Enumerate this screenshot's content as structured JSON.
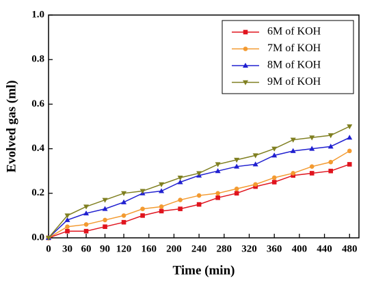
{
  "chart_data": {
    "type": "line",
    "x_label": "Time (min)",
    "y_label": "Evolved gas (ml)",
    "x": [
      0,
      30,
      60,
      90,
      120,
      150,
      180,
      210,
      240,
      270,
      300,
      330,
      360,
      390,
      420,
      450,
      480
    ],
    "series": [
      {
        "name": "6M of KOH",
        "color": "#e0141e",
        "marker": "square",
        "values": [
          0,
          0.03,
          0.03,
          0.05,
          0.07,
          0.1,
          0.12,
          0.13,
          0.15,
          0.18,
          0.2,
          0.23,
          0.25,
          0.28,
          0.29,
          0.3,
          0.33
        ]
      },
      {
        "name": "7M of KOH",
        "color": "#f39a30",
        "marker": "circle",
        "values": [
          0,
          0.05,
          0.06,
          0.08,
          0.1,
          0.13,
          0.14,
          0.17,
          0.19,
          0.2,
          0.22,
          0.24,
          0.27,
          0.29,
          0.32,
          0.34,
          0.39
        ]
      },
      {
        "name": "8M of KOH",
        "color": "#2020d0",
        "marker": "triangle-up",
        "values": [
          0,
          0.08,
          0.11,
          0.13,
          0.16,
          0.2,
          0.21,
          0.25,
          0.28,
          0.3,
          0.32,
          0.33,
          0.37,
          0.39,
          0.4,
          0.41,
          0.45
        ]
      },
      {
        "name": "9M of KOH",
        "color": "#7f7f20",
        "marker": "triangle-down",
        "values": [
          0,
          0.1,
          0.14,
          0.17,
          0.2,
          0.21,
          0.24,
          0.27,
          0.29,
          0.33,
          0.35,
          0.37,
          0.4,
          0.44,
          0.45,
          0.46,
          0.5
        ]
      }
    ],
    "xlim": [
      0,
      495
    ],
    "xticks": [
      0,
      30,
      60,
      90,
      120,
      160,
      200,
      240,
      280,
      320,
      360,
      400,
      440,
      480
    ],
    "ylim": [
      0,
      1.0
    ],
    "yticks": [
      {
        "value": 0,
        "label": "0.0"
      },
      {
        "value": 0.2,
        "label": "0.2"
      },
      {
        "value": 0.4,
        "label": "0.4"
      },
      {
        "value": 0.6,
        "label": "0.6"
      },
      {
        "value": 0.8,
        "label": "0.8"
      },
      {
        "value": 1.0,
        "label": "1.0"
      }
    ],
    "legend": "upper right",
    "grid": false
  }
}
